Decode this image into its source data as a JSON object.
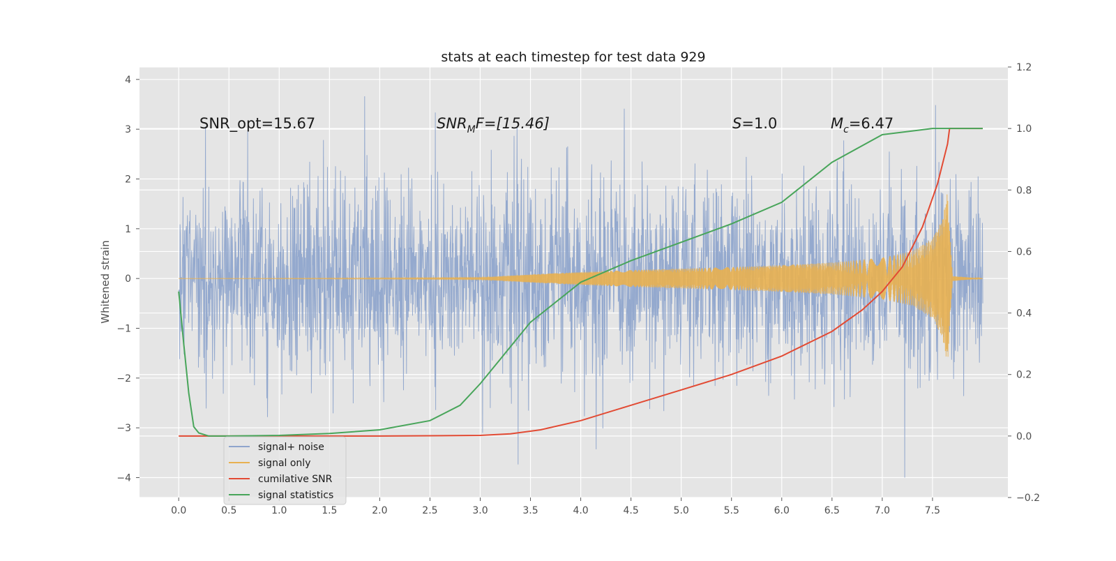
{
  "chart_data": {
    "type": "line",
    "title": "stats at each timestep for test data 929",
    "ylabel": "Whitened strain",
    "y2label": "",
    "xlim": [
      -0.39,
      8.25
    ],
    "ylim": [
      -4.4,
      4.25
    ],
    "y2lim": [
      -0.2,
      1.2
    ],
    "x_ticks": [
      0.0,
      0.5,
      1.0,
      1.5,
      2.0,
      2.5,
      3.0,
      3.5,
      4.0,
      4.5,
      5.0,
      5.5,
      6.0,
      6.5,
      7.0,
      7.5
    ],
    "x_tick_labels": [
      "0.0",
      "0.5",
      "1.0",
      "1.5",
      "2.0",
      "2.5",
      "3.0",
      "3.5",
      "4.0",
      "4.5",
      "5.0",
      "5.5",
      "6.0",
      "6.5",
      "7.0",
      "7.5"
    ],
    "y_ticks": [
      -4,
      -3,
      -2,
      -1,
      0,
      1,
      2,
      3,
      4
    ],
    "y_tick_labels": [
      "−4",
      "−3",
      "−2",
      "−1",
      "0",
      "1",
      "2",
      "3",
      "4"
    ],
    "y2_ticks": [
      -0.2,
      0.0,
      0.2,
      0.4,
      0.6,
      0.8,
      1.0,
      1.2
    ],
    "y2_tick_labels": [
      "−0.2",
      "0.0",
      "0.2",
      "0.4",
      "0.6",
      "0.8",
      "1.0",
      "1.2"
    ],
    "grid": true,
    "legend_position": "bottom-left",
    "annotations": {
      "snr_opt": "SNR_opt=15.67",
      "snr_mf_symbol": "SNR",
      "snr_mf_sub": "M",
      "snr_mf_rest": "F=[15.46]",
      "s_symbol": "S",
      "s_rest": "=1.0",
      "mc_symbol": "M",
      "mc_sub": "c",
      "mc_rest": "=6.47"
    },
    "noise_envelope": {
      "x": [
        0.0,
        8.0
      ],
      "typical_range": [
        -2.0,
        2.3
      ],
      "extreme_max": 3.85,
      "extreme_min": -4.0
    },
    "series": [
      {
        "name": "signal+ noise",
        "axis": "left",
        "color": "#8fa5cc"
      },
      {
        "name": "signal only",
        "axis": "left",
        "color": "#e8b050",
        "envelope_x": [
          0.0,
          3.0,
          3.5,
          4.0,
          4.5,
          5.0,
          5.5,
          6.0,
          6.5,
          7.0,
          7.3,
          7.5,
          7.6,
          7.65,
          7.67,
          7.7,
          8.0
        ],
        "envelope_amp": [
          0.0,
          0.02,
          0.08,
          0.13,
          0.17,
          0.2,
          0.23,
          0.27,
          0.32,
          0.42,
          0.55,
          0.8,
          1.2,
          1.75,
          1.0,
          0.05,
          0.0
        ]
      },
      {
        "name": "cumilative SNR",
        "axis": "right",
        "color": "#e24a33",
        "x": [
          0.0,
          1.0,
          2.0,
          3.0,
          3.3,
          3.6,
          4.0,
          4.5,
          5.0,
          5.5,
          6.0,
          6.5,
          6.8,
          7.0,
          7.2,
          7.4,
          7.55,
          7.65,
          7.67,
          8.0
        ],
        "y": [
          0.0,
          0.0,
          0.0,
          0.002,
          0.007,
          0.02,
          0.05,
          0.1,
          0.15,
          0.2,
          0.26,
          0.34,
          0.41,
          0.47,
          0.55,
          0.68,
          0.82,
          0.95,
          1.0,
          1.0
        ]
      },
      {
        "name": "signal statistics",
        "axis": "right",
        "color": "#48a55a",
        "x": [
          0.0,
          0.05,
          0.1,
          0.15,
          0.2,
          0.3,
          0.5,
          1.0,
          1.5,
          2.0,
          2.5,
          2.8,
          3.0,
          3.2,
          3.5,
          4.0,
          4.5,
          5.0,
          5.5,
          6.0,
          6.5,
          7.0,
          7.5,
          8.0
        ],
        "y": [
          0.47,
          0.3,
          0.14,
          0.03,
          0.01,
          0.0,
          0.0,
          0.002,
          0.008,
          0.02,
          0.05,
          0.1,
          0.17,
          0.25,
          0.37,
          0.5,
          0.57,
          0.63,
          0.69,
          0.76,
          0.89,
          0.98,
          1.0,
          1.0
        ]
      }
    ]
  }
}
